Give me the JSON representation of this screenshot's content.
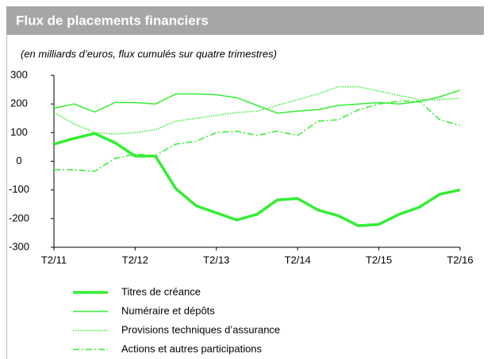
{
  "chart_data": {
    "type": "line",
    "title": "Flux de placements financiers",
    "subtitle": "(en milliards d’euros, flux cumulés sur quatre trimestres)",
    "categories": [
      "T2/11",
      null,
      null,
      null,
      "T2/12",
      null,
      null,
      null,
      "T2/13",
      null,
      null,
      null,
      "T2/14",
      null,
      null,
      null,
      "T2/15",
      null,
      null,
      null,
      "T2/16"
    ],
    "ylim": [
      -300,
      300
    ],
    "yticks": [
      300,
      200,
      100,
      0,
      -100,
      -200,
      -300
    ],
    "grid": false,
    "legend": "bottom",
    "series": [
      {
        "name": "Titres de créance",
        "color": "#33ee33",
        "line_style": "solid",
        "line_width": 3.5,
        "values": [
          60,
          80,
          97,
          65,
          18,
          18,
          -95,
          -155,
          -180,
          -205,
          -185,
          -135,
          -130,
          -170,
          -190,
          -225,
          -220,
          -185,
          -160,
          -115,
          -100
        ]
      },
      {
        "name": "Numéraire et dépôts",
        "color": "#33ee33",
        "line_style": "solid",
        "line_width": 1.5,
        "values": [
          185,
          200,
          172,
          205,
          205,
          200,
          235,
          235,
          232,
          222,
          195,
          168,
          175,
          180,
          195,
          200,
          205,
          200,
          208,
          225,
          248
        ]
      },
      {
        "name": "Provisions techniques d’assurance",
        "color": "#33ee33",
        "line_style": "dotted",
        "line_width": 1.5,
        "values": [
          170,
          130,
          100,
          95,
          100,
          110,
          140,
          150,
          160,
          170,
          175,
          195,
          215,
          235,
          260,
          260,
          245,
          230,
          215,
          215,
          220
        ]
      },
      {
        "name": "Actions et autres participations",
        "color": "#33ee33",
        "line_style": "dashdot",
        "line_width": 1.5,
        "values": [
          -30,
          -30,
          -35,
          10,
          25,
          20,
          60,
          70,
          100,
          105,
          90,
          105,
          90,
          140,
          145,
          180,
          200,
          210,
          210,
          145,
          125
        ]
      }
    ]
  }
}
